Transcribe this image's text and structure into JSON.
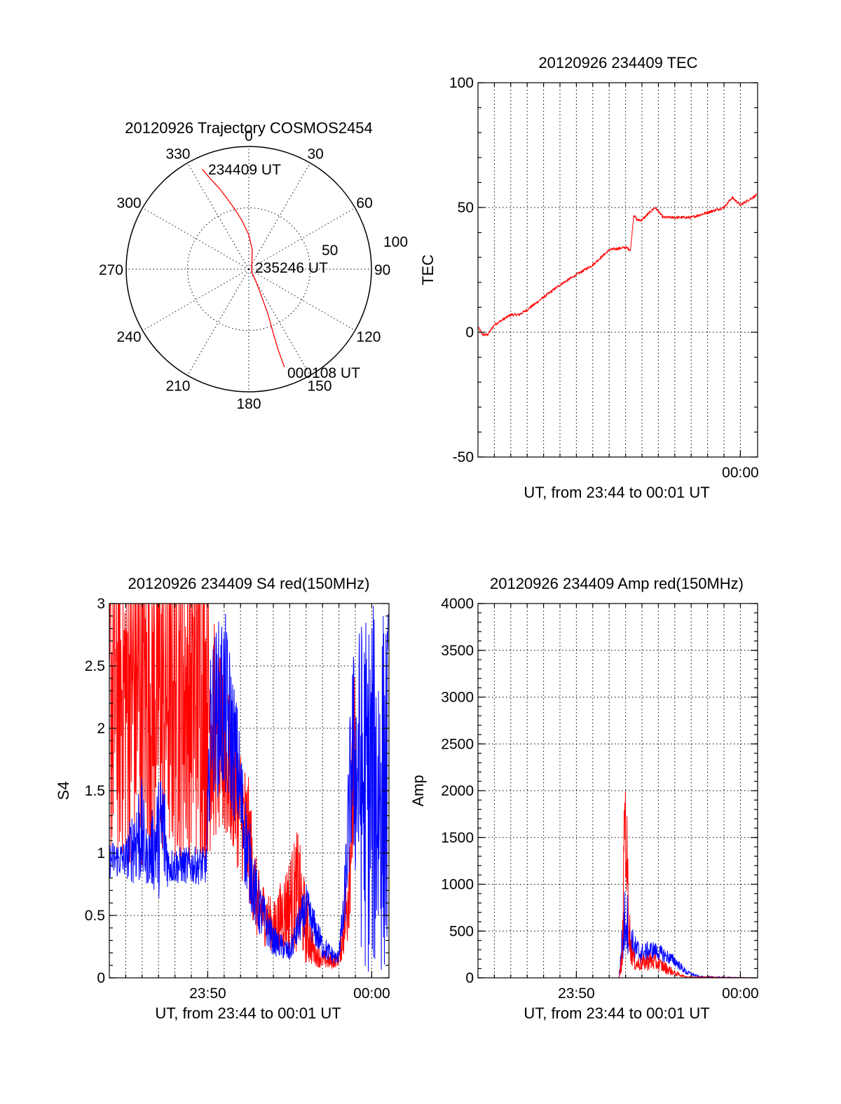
{
  "colors": {
    "red": "#ff0000",
    "blue": "#0000ff"
  },
  "chart_data": [
    {
      "id": "polar",
      "type": "scatter",
      "title": "20120926 Trajectory COSMOS2454",
      "azimuth_labels": [
        "0",
        "30",
        "60",
        "90",
        "120",
        "150",
        "180",
        "210",
        "240",
        "270",
        "300",
        "330"
      ],
      "radial_labels": [
        "50",
        "100"
      ],
      "start_label": "234409 UT",
      "mid_label": "235246 UT",
      "end_label": "000108 UT",
      "series": [
        {
          "color": "red",
          "points": [
            [
              335,
              90
            ],
            [
              337,
              80
            ],
            [
              340,
              70
            ],
            [
              343,
              60
            ],
            [
              347,
              50
            ],
            [
              352,
              40
            ],
            [
              0,
              28
            ],
            [
              10,
              16
            ],
            [
              130,
              3
            ],
            [
              150,
              12
            ],
            [
              155,
              25
            ],
            [
              157,
              40
            ],
            [
              159,
              55
            ],
            [
              160,
              70
            ],
            [
              160,
              85
            ]
          ]
        }
      ]
    },
    {
      "id": "tec",
      "type": "line",
      "title": "20120926 234409 TEC",
      "xlabel": "UT, from 23:44 to 00:01 UT",
      "ylabel": "TEC",
      "ylim": [
        -50,
        100
      ],
      "y_ticks": [
        "-50",
        "0",
        "50",
        "100"
      ],
      "x_tick_labels": [
        {
          "x": 16.0,
          "label": "00:00"
        }
      ],
      "xlim": [
        0,
        17.05
      ],
      "grid": true,
      "series": [
        {
          "color": "red",
          "noise": 0.6,
          "x": [
            0,
            0.3,
            0.6,
            1,
            1.5,
            2,
            2.5,
            3,
            4,
            5,
            6,
            7,
            8,
            9,
            9.3,
            9.5,
            9.7,
            10,
            10.3,
            10.8,
            11.3,
            12,
            13,
            14,
            15,
            15.5,
            16,
            16.5,
            17
          ],
          "y": [
            2,
            -1,
            -1,
            3,
            5,
            7,
            7,
            9,
            14,
            19,
            23,
            27,
            33,
            34,
            33,
            47,
            45,
            45,
            47,
            50,
            46,
            46,
            46,
            48,
            50,
            54,
            51,
            53,
            55
          ]
        }
      ]
    },
    {
      "id": "s4",
      "type": "line",
      "title": "20120926 234409 S4 red(150MHz)",
      "xlabel": "UT, from 23:44 to 00:01 UT",
      "ylabel": "S4",
      "ylim": [
        0,
        3
      ],
      "y_ticks": [
        "0",
        "0.5",
        "1",
        "1.5",
        "2",
        "2.5",
        "3"
      ],
      "x_tick_labels": [
        {
          "x": 6.0,
          "label": "23:50"
        },
        {
          "x": 16.0,
          "label": "00:00"
        }
      ],
      "xlim": [
        0,
        17.05
      ],
      "grid": true,
      "series": [
        {
          "color": "red",
          "x": [
            0,
            2,
            4,
            5.9,
            6.5,
            7.5,
            8.5,
            9,
            10,
            10.5,
            11,
            11.5,
            12,
            12.5,
            13,
            13.6,
            14,
            14.5,
            15
          ],
          "y": [
            2.3,
            2.3,
            2.3,
            2.3,
            1.9,
            1.6,
            1.1,
            0.6,
            0.4,
            0.5,
            0.6,
            0.7,
            0.4,
            0.2,
            0.15,
            0.13,
            0.15,
            0.6,
            1.8
          ],
          "noise": [
            1.4,
            1.4,
            1.4,
            1.4,
            0.8,
            0.6,
            0.5,
            0.3,
            0.2,
            0.3,
            0.4,
            0.5,
            0.3,
            0.1,
            0.08,
            0.06,
            0.05,
            0.4,
            0.8
          ]
        },
        {
          "color": "blue",
          "x": [
            0,
            1,
            1.9,
            2.3,
            3.3,
            3.6,
            5.9,
            6.2,
            7,
            7.8,
            8.3,
            9,
            10,
            11,
            11.5,
            12,
            13,
            13.9,
            14.3,
            14.8,
            15.5,
            16.5,
            17
          ],
          "y": [
            0.95,
            0.95,
            1.2,
            0.95,
            1.2,
            0.9,
            0.9,
            2.1,
            2.2,
            1.7,
            1.1,
            0.6,
            0.3,
            0.2,
            0.4,
            0.55,
            0.25,
            0.15,
            0.5,
            1.8,
            1.5,
            1.5,
            1.5
          ],
          "noise": [
            0.15,
            0.15,
            0.5,
            0.2,
            0.6,
            0.15,
            0.15,
            0.6,
            0.8,
            0.5,
            0.4,
            0.25,
            0.12,
            0.08,
            0.15,
            0.2,
            0.1,
            0.05,
            0.2,
            0.8,
            1.5,
            1.5,
            1.5
          ]
        }
      ]
    },
    {
      "id": "amp",
      "type": "line",
      "title": "20120926 234409 Amp red(150MHz)",
      "xlabel": "UT, from 23:44 to 00:01 UT",
      "ylabel": "Amp",
      "ylim": [
        0,
        4000
      ],
      "y_ticks": [
        "0",
        "500",
        "1000",
        "1500",
        "2000",
        "2500",
        "3000",
        "3500",
        "4000"
      ],
      "x_tick_labels": [
        {
          "x": 6.0,
          "label": "23:50"
        },
        {
          "x": 16.0,
          "label": "00:00"
        }
      ],
      "xlim": [
        0,
        17.05
      ],
      "grid": true,
      "series": [
        {
          "color": "blue",
          "x": [
            0,
            8.6,
            8.8,
            9,
            9.3,
            9.6,
            10,
            10.6,
            11.3,
            12,
            12.7,
            13.5,
            17
          ],
          "y": [
            0,
            0,
            350,
            700,
            400,
            300,
            250,
            300,
            250,
            180,
            60,
            10,
            0
          ],
          "noise": [
            0,
            0,
            300,
            400,
            200,
            150,
            120,
            100,
            80,
            60,
            30,
            10,
            0
          ]
        },
        {
          "color": "red",
          "x": [
            0,
            8.6,
            8.8,
            8.95,
            9.1,
            9.3,
            9.6,
            10,
            10.5,
            11,
            11.5,
            12,
            12.7,
            17
          ],
          "y": [
            0,
            0,
            200,
            1900,
            1100,
            300,
            150,
            150,
            180,
            150,
            100,
            50,
            10,
            0
          ],
          "noise": [
            0,
            0,
            150,
            500,
            600,
            150,
            80,
            80,
            100,
            80,
            60,
            30,
            5,
            0
          ]
        }
      ]
    }
  ]
}
